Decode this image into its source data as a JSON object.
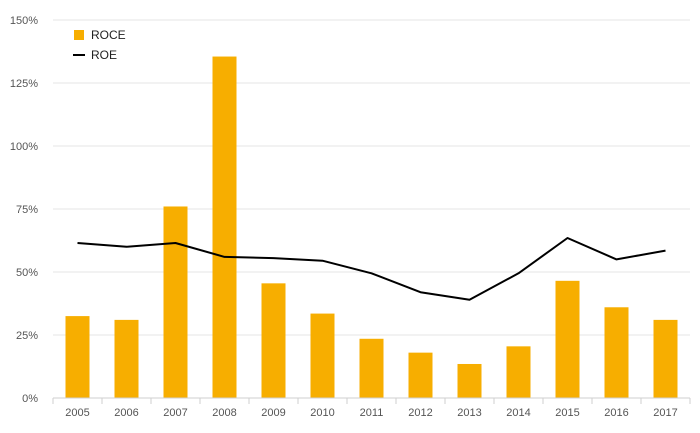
{
  "chart_data": {
    "type": "bar",
    "title": "",
    "xlabel": "",
    "ylabel": "",
    "categories": [
      "2005",
      "2006",
      "2007",
      "2008",
      "2009",
      "2010",
      "2011",
      "2012",
      "2013",
      "2014",
      "2015",
      "2016",
      "2017"
    ],
    "ylim": [
      0,
      150
    ],
    "yticks": [
      0,
      25,
      50,
      75,
      100,
      125,
      150
    ],
    "ytick_labels": [
      "0%",
      "25%",
      "50%",
      "75%",
      "100%",
      "125%",
      "150%"
    ],
    "grid": true,
    "legend_position": "top-left",
    "series": [
      {
        "name": "ROCE",
        "type": "bar",
        "color": "#F7AE00",
        "values": [
          32.5,
          31.0,
          76.0,
          135.5,
          45.5,
          33.5,
          23.5,
          18.0,
          13.5,
          20.5,
          46.5,
          36.0,
          31.0
        ]
      },
      {
        "name": "ROE",
        "type": "line",
        "color": "#000000",
        "values": [
          61.5,
          60.0,
          61.5,
          56.0,
          55.5,
          54.5,
          49.5,
          42.0,
          39.0,
          49.5,
          63.5,
          55.0,
          58.5
        ]
      }
    ]
  }
}
